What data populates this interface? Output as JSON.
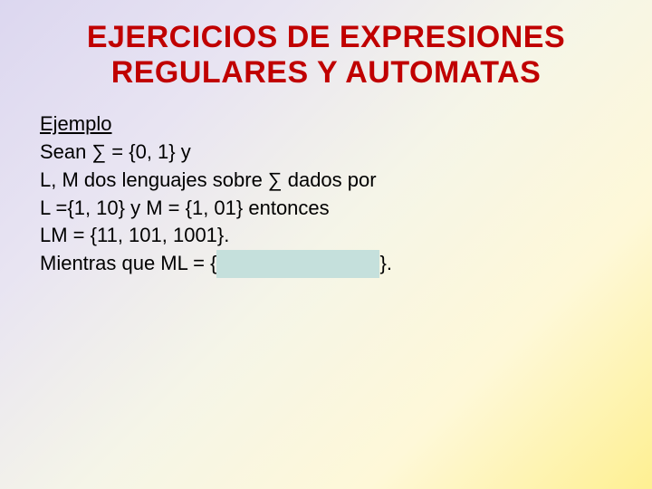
{
  "slide": {
    "title": "EJERCICIOS DE EXPRESIONES REGULARES Y AUTOMATAS",
    "example_label": "Ejemplo",
    "line1": "Sean ∑ = {0, 1} y",
    "line2": "L, M dos lenguajes sobre ∑ dados por",
    "line3": "L ={1, 10} y M = {1, 01} entonces",
    "line4": "LM = {11, 101, 1001}.",
    "line5_prefix": "Mientras que ML = {",
    "line5_hidden": "                            ",
    "line5_suffix": "}."
  },
  "colors": {
    "title_color": "#c00000",
    "text_color": "#000000",
    "highlight_bg": "#c5e0dc",
    "bg_gradient_start": "#dcd7f0",
    "bg_gradient_end": "#fef092"
  },
  "typography": {
    "title_fontsize": 34,
    "body_fontsize": 22,
    "title_weight": "bold",
    "font_family": "Arial"
  }
}
